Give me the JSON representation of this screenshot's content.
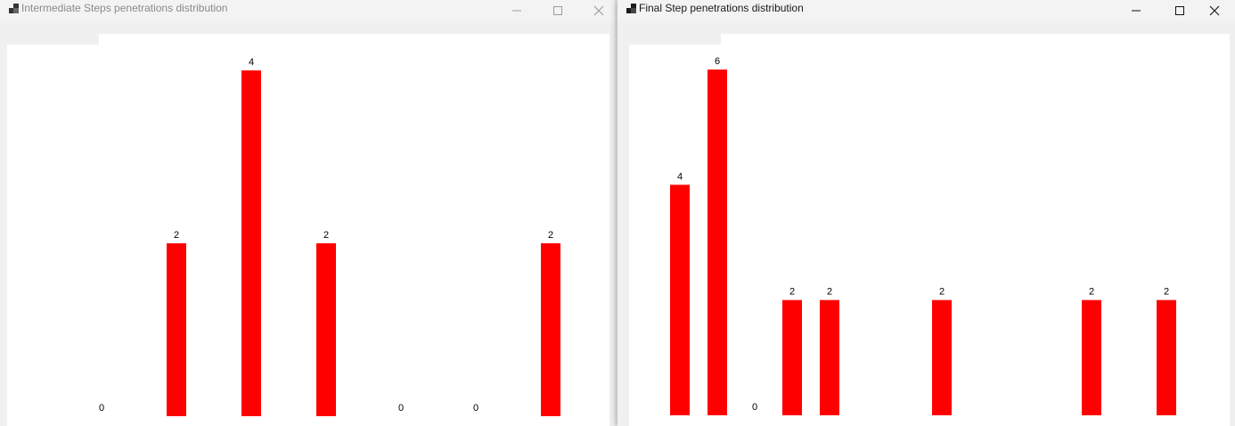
{
  "windows": [
    {
      "title": "Intermediate Steps penetrations distribution",
      "active": false,
      "chart_data": {
        "type": "bar",
        "title": "",
        "xlabel": "",
        "ylabel": "",
        "color": "#ff0000",
        "values": [
          0,
          2,
          4,
          2,
          0,
          0,
          2
        ]
      }
    },
    {
      "title": "Final Step penetrations distribution",
      "active": true,
      "chart_data": {
        "type": "bar",
        "title": "",
        "xlabel": "",
        "ylabel": "",
        "color": "#ff0000",
        "values": [
          4,
          6,
          0,
          2,
          2,
          2,
          2,
          2
        ]
      }
    }
  ],
  "controls": {
    "minimize_icon": "minimize-icon",
    "maximize_icon": "maximize-icon",
    "close_icon": "close-icon"
  },
  "colors": {
    "bar": "#ff0000",
    "window_chrome": "#f0f0f0",
    "chart_background": "#ffffff"
  }
}
